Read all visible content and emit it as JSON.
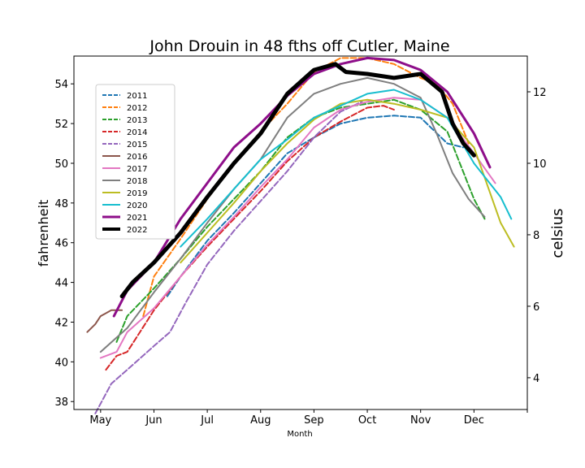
{
  "chart_data": {
    "type": "line",
    "title": "John Drouin in 48 fths off Cutler, Maine",
    "xlabel": "Month",
    "ylabel": "fahrenheit",
    "y2label": "celsius",
    "x_ticks": [
      {
        "label": "May",
        "month": 5
      },
      {
        "label": "Jun",
        "month": 6
      },
      {
        "label": "Jul",
        "month": 7
      },
      {
        "label": "Aug",
        "month": 8
      },
      {
        "label": "Sep",
        "month": 9
      },
      {
        "label": "Oct",
        "month": 10
      },
      {
        "label": "Nov",
        "month": 11
      },
      {
        "label": "Dec",
        "month": 12
      },
      {
        "label": "",
        "month": 13
      }
    ],
    "xlim": [
      4.5,
      13.0
    ],
    "ylim": [
      37.6,
      55.4
    ],
    "yticks": [
      "38",
      "40",
      "42",
      "44",
      "46",
      "48",
      "50",
      "52",
      "54"
    ],
    "y2ticks": [
      "4",
      "6",
      "8",
      "10",
      "12"
    ],
    "grid": false,
    "legend_position": "upper-left",
    "series": [
      {
        "name": "2011",
        "color": "#1f77b4",
        "style": "dashed",
        "width": 2,
        "x": [
          6.25,
          6.5,
          7.0,
          7.5,
          8.0,
          8.5,
          9.0,
          9.5,
          10.0,
          10.5,
          11.0,
          11.5,
          11.8
        ],
        "y": [
          43.3,
          44.3,
          46.1,
          47.5,
          49.0,
          50.5,
          51.3,
          52.0,
          52.3,
          52.4,
          52.3,
          51.0,
          50.8
        ]
      },
      {
        "name": "2012",
        "color": "#ff7f0e",
        "style": "dashed",
        "width": 2,
        "x": [
          5.8,
          6.0,
          6.5,
          7.0,
          7.5,
          8.0,
          8.5,
          9.0,
          9.5,
          10.0,
          10.5,
          11.0,
          11.3,
          11.6,
          11.9
        ],
        "y": [
          42.3,
          44.3,
          46.2,
          48.2,
          50.0,
          51.6,
          53.0,
          54.6,
          55.3,
          55.3,
          55.0,
          54.3,
          54.0,
          53.0,
          51.0
        ]
      },
      {
        "name": "2013",
        "color": "#2ca02c",
        "style": "dashed",
        "width": 2,
        "x": [
          5.3,
          5.5,
          6.0,
          6.5,
          7.0,
          7.5,
          8.0,
          8.5,
          9.0,
          9.5,
          10.0,
          10.5,
          11.0,
          11.5,
          12.0,
          12.2
        ],
        "y": [
          41.0,
          42.3,
          43.7,
          45.2,
          46.8,
          48.2,
          49.6,
          51.3,
          52.3,
          52.8,
          53.0,
          53.2,
          52.7,
          51.6,
          48.2,
          47.2
        ]
      },
      {
        "name": "2014",
        "color": "#d62728",
        "style": "dashed",
        "width": 2,
        "x": [
          5.1,
          5.3,
          5.5,
          6.0,
          6.5,
          7.0,
          7.5,
          8.0,
          8.5,
          9.0,
          9.5,
          10.0,
          10.3,
          10.5
        ],
        "y": [
          39.6,
          40.3,
          40.5,
          42.6,
          44.3,
          45.8,
          47.2,
          48.6,
          50.1,
          51.3,
          52.1,
          52.8,
          52.9,
          52.7
        ]
      },
      {
        "name": "2015",
        "color": "#9467bd",
        "style": "dashed",
        "width": 2,
        "x": [
          4.9,
          5.2,
          5.5,
          6.0,
          6.3,
          6.6,
          7.0,
          7.5,
          8.0,
          8.5,
          9.0,
          9.5,
          9.9
        ],
        "y": [
          37.4,
          38.9,
          39.6,
          40.8,
          41.5,
          43.0,
          44.9,
          46.6,
          48.1,
          49.6,
          51.3,
          52.6,
          53.1
        ]
      },
      {
        "name": "2016",
        "color": "#8c564b",
        "style": "solid",
        "width": 2,
        "x": [
          4.75,
          4.9,
          5.0,
          5.2,
          5.4
        ],
        "y": [
          41.5,
          41.9,
          42.3,
          42.6,
          42.6
        ]
      },
      {
        "name": "2017",
        "color": "#e377c2",
        "style": "solid",
        "width": 2,
        "x": [
          5.0,
          5.3,
          5.5,
          6.0,
          6.5,
          7.0,
          7.5,
          8.0,
          8.5,
          9.0,
          9.5,
          10.0,
          10.5,
          11.0,
          11.5,
          12.0,
          12.4
        ],
        "y": [
          40.2,
          40.5,
          41.5,
          42.7,
          44.3,
          45.9,
          47.3,
          48.8,
          50.2,
          51.8,
          52.7,
          53.1,
          53.3,
          53.2,
          52.3,
          50.5,
          49.0
        ]
      },
      {
        "name": "2018",
        "color": "#7f7f7f",
        "style": "solid",
        "width": 2,
        "x": [
          5.0,
          5.5,
          6.0,
          6.5,
          7.0,
          7.5,
          8.0,
          8.5,
          9.0,
          9.5,
          10.0,
          10.5,
          11.0,
          11.3,
          11.6,
          11.9,
          12.2
        ],
        "y": [
          40.5,
          41.7,
          43.5,
          45.2,
          47.0,
          48.7,
          50.2,
          52.3,
          53.5,
          54.0,
          54.3,
          54.0,
          53.3,
          51.5,
          49.5,
          48.2,
          47.3
        ]
      },
      {
        "name": "2019",
        "color": "#bcbd22",
        "style": "solid",
        "width": 2,
        "x": [
          6.5,
          7.0,
          7.5,
          8.0,
          8.5,
          9.0,
          9.5,
          10.0,
          10.5,
          11.0,
          11.5,
          12.0,
          12.5,
          12.75
        ],
        "y": [
          45.0,
          46.5,
          48.0,
          49.6,
          51.0,
          52.2,
          53.0,
          53.2,
          53.0,
          52.7,
          52.3,
          50.8,
          47.0,
          45.8
        ]
      },
      {
        "name": "2020",
        "color": "#17becf",
        "style": "solid",
        "width": 2,
        "x": [
          6.5,
          7.0,
          7.5,
          8.0,
          8.5,
          9.0,
          9.5,
          10.0,
          10.5,
          11.0,
          11.5,
          12.0,
          12.5,
          12.7
        ],
        "y": [
          45.8,
          47.2,
          48.7,
          50.2,
          51.2,
          52.3,
          52.9,
          53.5,
          53.7,
          53.2,
          52.3,
          50.0,
          48.3,
          47.2
        ]
      },
      {
        "name": "2021",
        "color": "#8e0e8a",
        "style": "solid",
        "width": 3,
        "x": [
          5.25,
          5.5,
          6.0,
          6.5,
          7.0,
          7.5,
          8.0,
          8.5,
          9.0,
          9.5,
          10.0,
          10.5,
          11.0,
          11.5,
          12.0,
          12.3
        ],
        "y": [
          42.3,
          43.6,
          45.0,
          47.2,
          49.0,
          50.8,
          52.0,
          53.4,
          54.5,
          55.0,
          55.3,
          55.2,
          54.7,
          53.6,
          51.5,
          49.8
        ]
      },
      {
        "name": "2022",
        "color": "#000000",
        "style": "solid",
        "width": 5,
        "x": [
          5.4,
          5.6,
          6.0,
          6.5,
          7.0,
          7.5,
          8.0,
          8.5,
          9.0,
          9.4,
          9.6,
          10.0,
          10.5,
          11.0,
          11.4,
          11.6,
          11.8,
          12.0
        ],
        "y": [
          43.3,
          44.0,
          45.0,
          46.5,
          48.3,
          50.0,
          51.5,
          53.5,
          54.7,
          55.0,
          54.6,
          54.5,
          54.3,
          54.5,
          53.6,
          52.0,
          51.0,
          50.4
        ]
      }
    ]
  }
}
